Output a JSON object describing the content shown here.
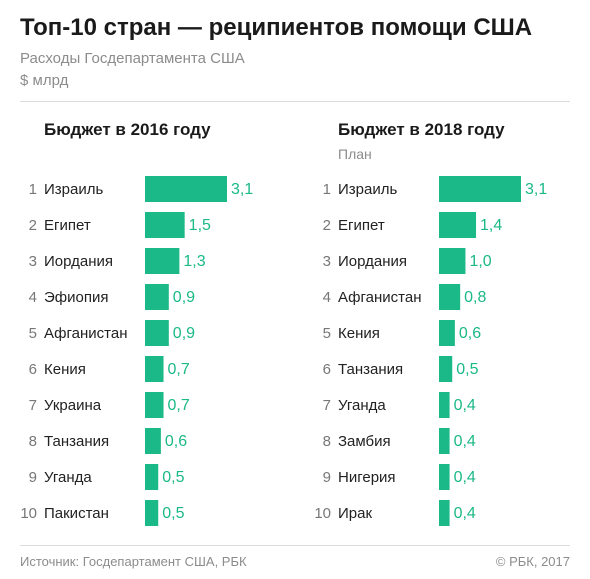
{
  "header": {
    "title": "Топ-10 стран — реципиентов помощи США",
    "subtitle": "Расходы Госдепартамента США",
    "unit": "$ млрд"
  },
  "colors": {
    "bar": "#1ab987",
    "value_text": "#1ab987",
    "rank_text": "#777777",
    "label_text": "#222222"
  },
  "chart_data": [
    {
      "type": "bar",
      "orientation": "horizontal",
      "title": "Бюджет в 2016 году",
      "subtitle": "",
      "ranks": [
        "1",
        "2",
        "3",
        "4",
        "5",
        "6",
        "7",
        "8",
        "9",
        "10"
      ],
      "categories": [
        "Израиль",
        "Египет",
        "Иордания",
        "Эфиопия",
        "Афганистан",
        "Кения",
        "Украина",
        "Танзания",
        "Уганда",
        "Пакистан"
      ],
      "values": [
        3.1,
        1.5,
        1.3,
        0.9,
        0.9,
        0.7,
        0.7,
        0.6,
        0.5,
        0.5
      ],
      "value_labels": [
        "3,1",
        "1,5",
        "1,3",
        "0,9",
        "0,9",
        "0,7",
        "0,7",
        "0,6",
        "0,5",
        "0,5"
      ],
      "xlim": [
        0,
        3.1
      ]
    },
    {
      "type": "bar",
      "orientation": "horizontal",
      "title": "Бюджет в 2018 году",
      "subtitle": "План",
      "ranks": [
        "1",
        "2",
        "3",
        "4",
        "5",
        "6",
        "7",
        "8",
        "9",
        "10"
      ],
      "categories": [
        "Израиль",
        "Египет",
        "Иордания",
        "Афганистан",
        "Кения",
        "Танзания",
        "Уганда",
        "Замбия",
        "Нигерия",
        "Ирак"
      ],
      "values": [
        3.1,
        1.4,
        1.0,
        0.8,
        0.6,
        0.5,
        0.4,
        0.4,
        0.4,
        0.4
      ],
      "value_labels": [
        "3,1",
        "1,4",
        "1,0",
        "0,8",
        "0,6",
        "0,5",
        "0,4",
        "0,4",
        "0,4",
        "0,4"
      ],
      "xlim": [
        0,
        3.1
      ]
    }
  ],
  "footer": {
    "source": "Источник: Госдепартамент США, РБК",
    "copyright": "© РБК, 2017"
  }
}
